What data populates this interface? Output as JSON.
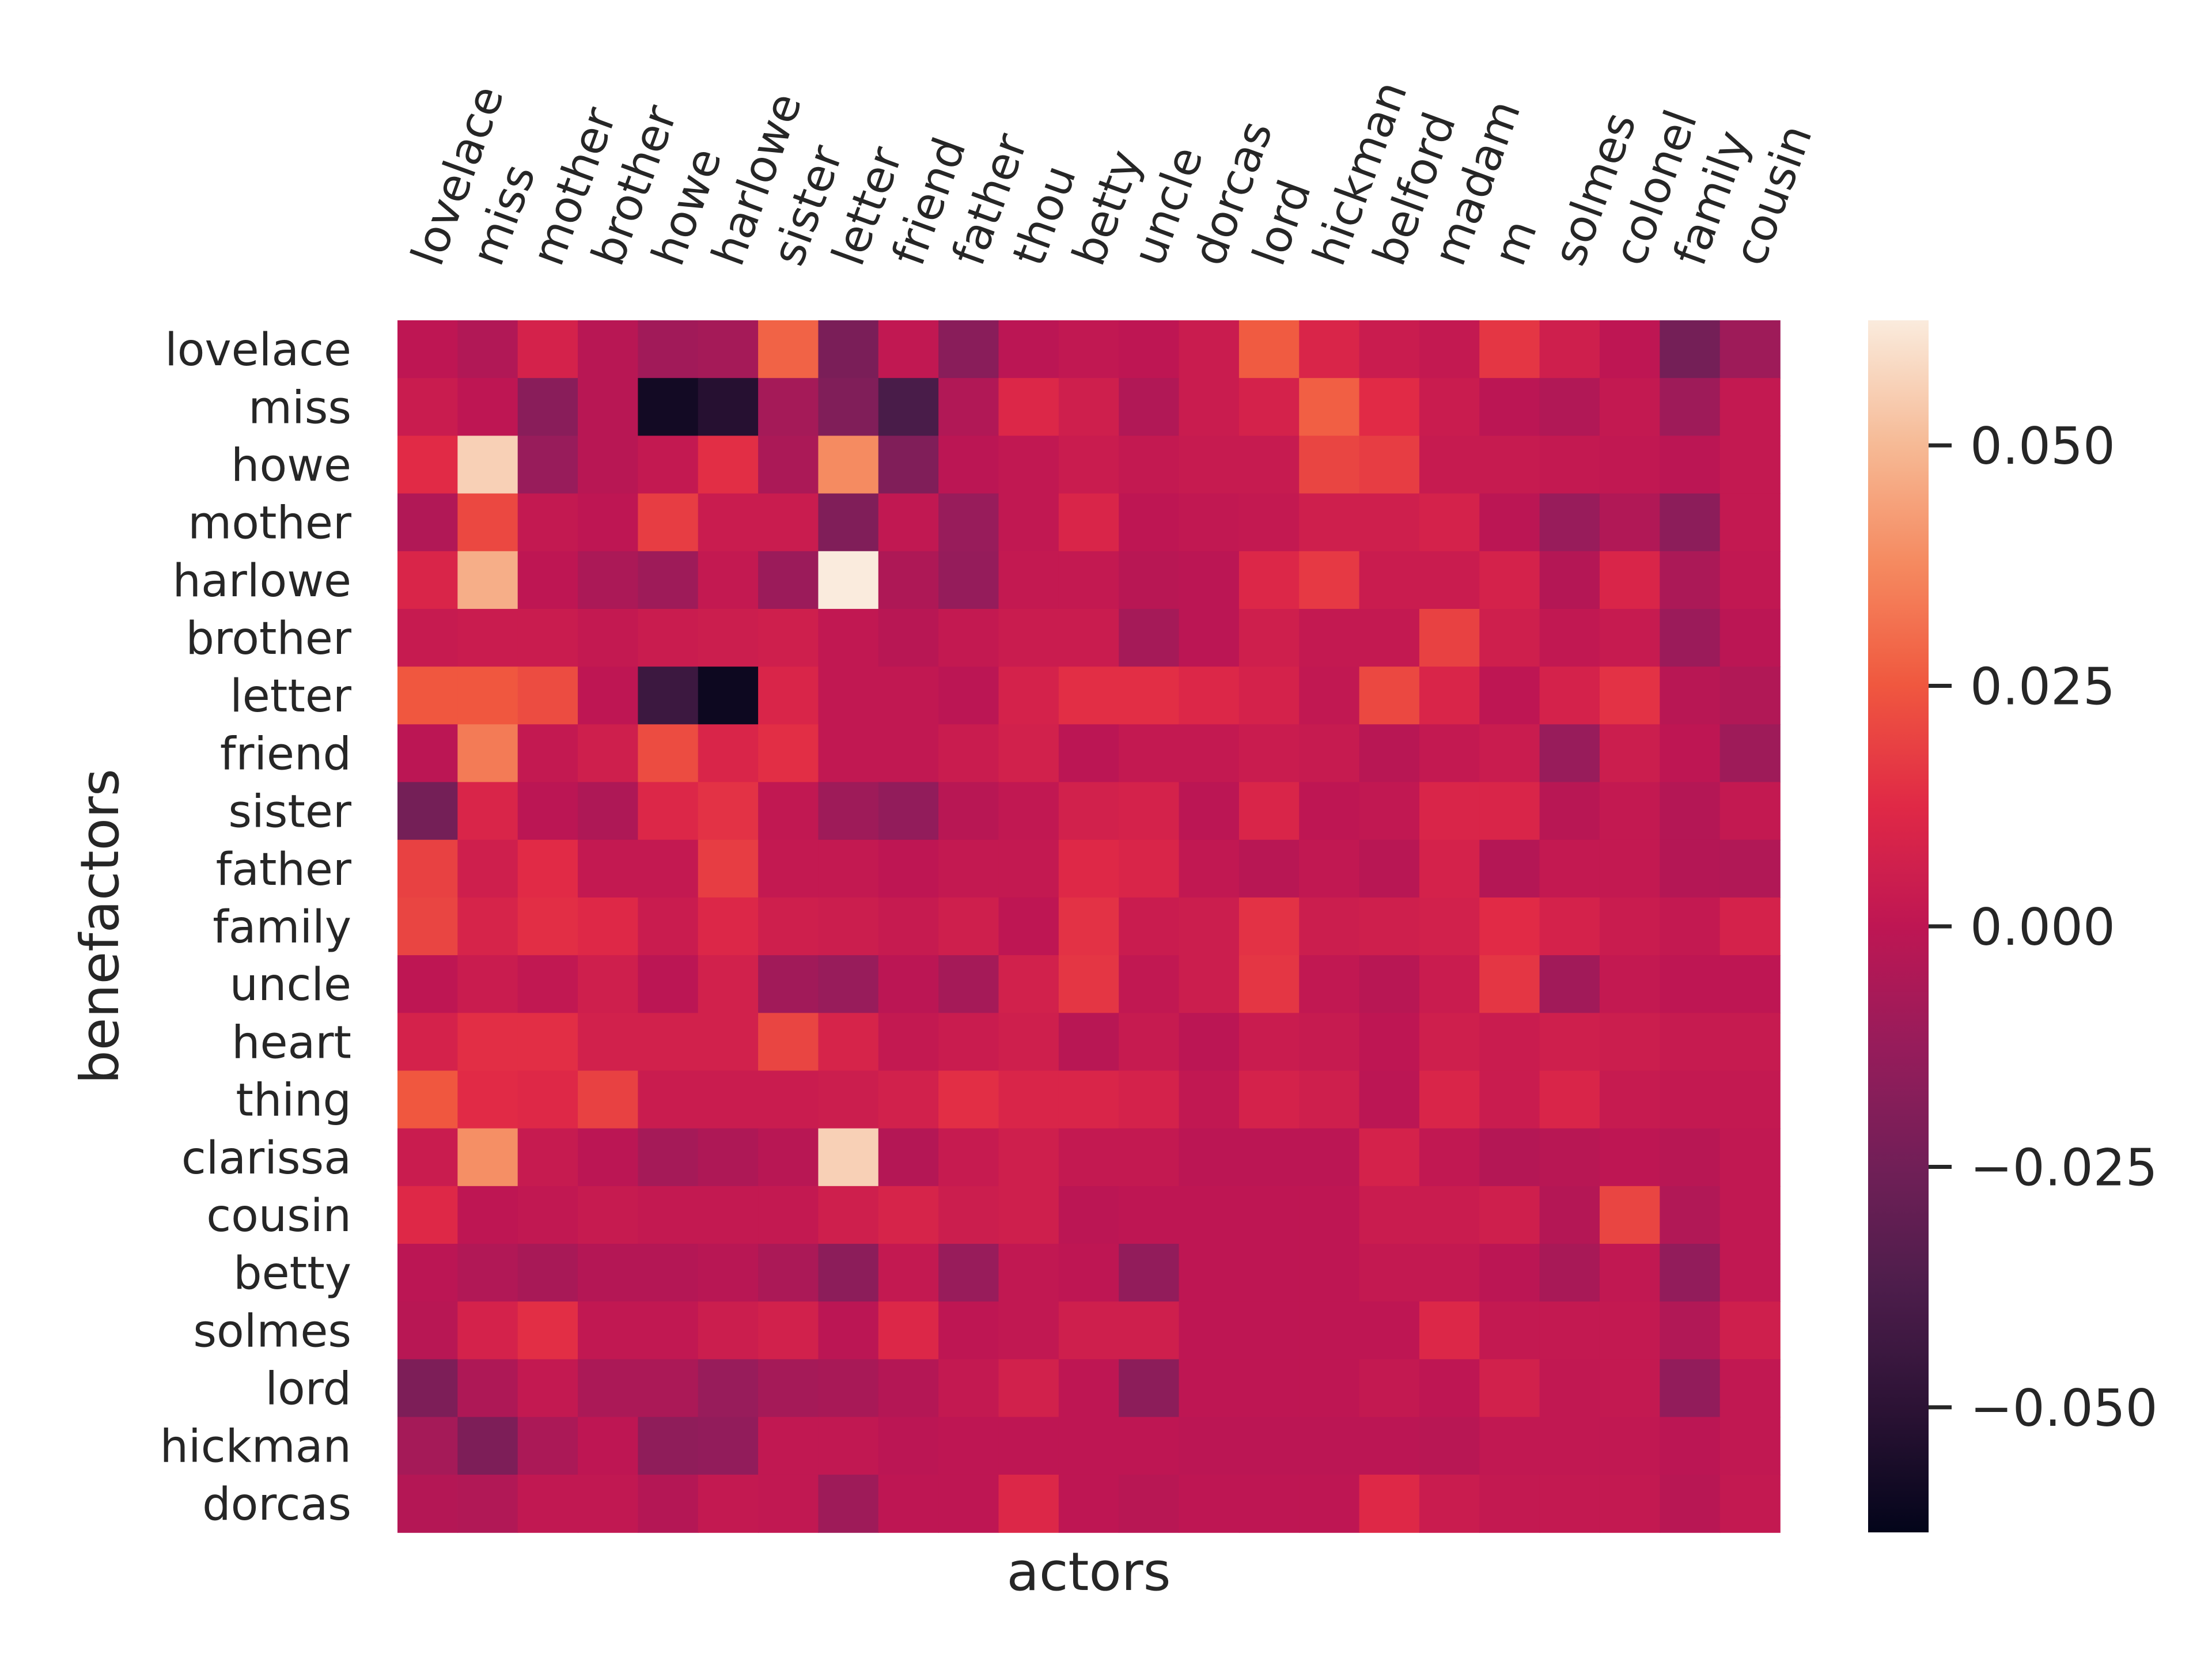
{
  "chart_data": {
    "type": "heatmap",
    "title": "",
    "xlabel": "actors",
    "ylabel": "benefactors",
    "x_categories": [
      "lovelace",
      "miss",
      "mother",
      "brother",
      "howe",
      "harlowe",
      "sister",
      "letter",
      "friend",
      "father",
      "thou",
      "betty",
      "uncle",
      "dorcas",
      "lord",
      "hickman",
      "belford",
      "madam",
      "m",
      "solmes",
      "colonel",
      "family",
      "cousin"
    ],
    "y_categories": [
      "lovelace",
      "miss",
      "howe",
      "mother",
      "harlowe",
      "brother",
      "letter",
      "friend",
      "sister",
      "father",
      "family",
      "uncle",
      "heart",
      "thing",
      "clarissa",
      "cousin",
      "betty",
      "solmes",
      "lord",
      "hickman",
      "dorcas"
    ],
    "values": [
      [
        0.0,
        -0.004,
        0.008,
        -0.002,
        -0.009,
        -0.008,
        0.028,
        -0.022,
        0.001,
        -0.017,
        -0.001,
        0.001,
        0.0,
        0.004,
        0.026,
        0.01,
        0.004,
        0.002,
        0.016,
        0.006,
        0.0,
        -0.024,
        -0.01
      ],
      [
        0.004,
        0.0,
        -0.017,
        -0.002,
        -0.058,
        -0.052,
        -0.008,
        -0.02,
        -0.039,
        -0.004,
        0.011,
        0.006,
        -0.004,
        0.004,
        0.008,
        0.027,
        0.013,
        0.004,
        -0.001,
        -0.004,
        0.002,
        -0.01,
        0.002
      ],
      [
        0.013,
        0.056,
        -0.012,
        -0.002,
        0.002,
        0.014,
        -0.006,
        0.038,
        -0.02,
        -0.001,
        0.001,
        0.004,
        0.002,
        0.003,
        0.003,
        0.02,
        0.018,
        0.003,
        0.003,
        0.002,
        0.001,
        -0.001,
        0.002
      ],
      [
        -0.004,
        0.021,
        0.002,
        0.0,
        0.018,
        0.004,
        0.004,
        -0.02,
        0.001,
        -0.012,
        0.001,
        0.01,
        0.0,
        0.001,
        0.002,
        0.006,
        0.006,
        0.008,
        -0.001,
        -0.012,
        -0.004,
        -0.016,
        0.002
      ],
      [
        0.01,
        0.047,
        0.0,
        -0.006,
        -0.01,
        0.002,
        -0.011,
        0.063,
        -0.005,
        -0.013,
        0.002,
        0.002,
        -0.002,
        -0.001,
        0.011,
        0.017,
        0.004,
        0.004,
        0.008,
        -0.003,
        0.01,
        -0.006,
        0.001
      ],
      [
        0.003,
        0.004,
        0.004,
        0.002,
        0.004,
        0.005,
        0.006,
        0.001,
        -0.002,
        0.002,
        0.004,
        0.004,
        -0.008,
        -0.001,
        0.006,
        0.002,
        0.002,
        0.019,
        0.006,
        0.001,
        0.003,
        -0.011,
        -0.001
      ],
      [
        0.025,
        0.025,
        0.022,
        0.0,
        -0.044,
        -0.06,
        0.01,
        0.001,
        0.001,
        -0.001,
        0.008,
        0.014,
        0.014,
        0.011,
        0.008,
        0.001,
        0.021,
        0.01,
        0.0,
        0.008,
        0.015,
        -0.002,
        -0.004
      ],
      [
        -0.001,
        0.034,
        0.002,
        0.006,
        0.022,
        0.01,
        0.014,
        0.001,
        0.001,
        0.004,
        0.007,
        -0.001,
        0.002,
        0.002,
        0.004,
        0.003,
        -0.002,
        0.002,
        0.004,
        -0.012,
        0.005,
        0.0,
        -0.01
      ],
      [
        -0.024,
        0.01,
        -0.001,
        -0.005,
        0.011,
        0.015,
        0.001,
        -0.01,
        -0.014,
        -0.002,
        0.001,
        0.007,
        0.008,
        -0.001,
        0.01,
        0.0,
        0.001,
        0.01,
        0.01,
        -0.002,
        0.002,
        -0.003,
        0.002
      ],
      [
        0.019,
        0.006,
        0.013,
        0.002,
        0.002,
        0.018,
        0.002,
        0.002,
        0.0,
        0.002,
        0.002,
        0.012,
        0.01,
        0.001,
        -0.002,
        0.001,
        -0.002,
        0.008,
        -0.003,
        0.002,
        0.002,
        -0.003,
        -0.004
      ],
      [
        0.02,
        0.009,
        0.014,
        0.012,
        0.004,
        0.011,
        0.006,
        0.005,
        0.003,
        0.006,
        0.0,
        0.015,
        0.004,
        0.005,
        0.015,
        0.005,
        0.006,
        0.007,
        0.013,
        0.008,
        0.004,
        0.002,
        0.008
      ],
      [
        0.0,
        0.004,
        0.001,
        0.006,
        -0.001,
        0.007,
        -0.009,
        -0.012,
        -0.001,
        -0.008,
        0.007,
        0.016,
        0.001,
        0.005,
        0.016,
        0.001,
        -0.002,
        0.004,
        0.016,
        -0.009,
        0.002,
        0.0,
        0.0
      ],
      [
        0.008,
        0.014,
        0.014,
        0.007,
        0.007,
        0.007,
        0.02,
        0.009,
        0.002,
        0.004,
        0.006,
        -0.002,
        0.003,
        -0.001,
        0.004,
        0.003,
        0.0,
        0.006,
        0.004,
        0.006,
        0.005,
        0.003,
        0.003
      ],
      [
        0.025,
        0.013,
        0.012,
        0.019,
        0.004,
        0.004,
        0.004,
        0.005,
        0.007,
        0.014,
        0.01,
        0.01,
        0.008,
        0.001,
        0.008,
        0.006,
        -0.001,
        0.01,
        0.004,
        0.01,
        0.003,
        0.002,
        0.002
      ],
      [
        0.004,
        0.039,
        0.003,
        -0.001,
        -0.008,
        -0.005,
        -0.002,
        0.056,
        -0.003,
        0.003,
        0.006,
        0.002,
        0.002,
        -0.001,
        -0.001,
        -0.001,
        0.008,
        0.001,
        -0.003,
        -0.002,
        0.0,
        -0.002,
        0.001
      ],
      [
        0.012,
        0.0,
        0.001,
        0.003,
        0.002,
        0.002,
        0.002,
        0.006,
        0.009,
        0.005,
        0.006,
        -0.001,
        0.0,
        0.0,
        0.0,
        0.0,
        0.004,
        0.004,
        0.006,
        -0.003,
        0.02,
        -0.004,
        0.001
      ],
      [
        -0.001,
        -0.004,
        -0.007,
        -0.003,
        -0.003,
        -0.002,
        -0.006,
        -0.016,
        0.002,
        -0.012,
        0.001,
        0.0,
        -0.014,
        0.0,
        0.0,
        0.0,
        0.002,
        0.002,
        -0.001,
        -0.007,
        0.001,
        -0.014,
        0.001
      ],
      [
        -0.002,
        0.008,
        0.014,
        0.001,
        0.001,
        0.005,
        0.007,
        -0.001,
        0.011,
        0.0,
        0.001,
        0.006,
        0.006,
        0.0,
        0.0,
        0.0,
        0.0,
        0.011,
        0.002,
        0.002,
        0.002,
        -0.004,
        0.006
      ],
      [
        -0.021,
        -0.005,
        0.002,
        -0.006,
        -0.006,
        -0.012,
        -0.008,
        -0.007,
        -0.003,
        0.002,
        0.007,
        0.0,
        -0.016,
        0.0,
        0.0,
        0.0,
        0.002,
        0.0,
        0.007,
        0.001,
        0.002,
        -0.014,
        0.001
      ],
      [
        -0.008,
        -0.021,
        -0.006,
        0.0,
        -0.015,
        -0.014,
        0.001,
        0.001,
        -0.001,
        0.0,
        0.0,
        0.0,
        0.0,
        -0.001,
        -0.001,
        -0.001,
        -0.001,
        -0.002,
        0.001,
        0.001,
        0.001,
        -0.001,
        0.001
      ],
      [
        -0.003,
        -0.004,
        0.001,
        0.001,
        -0.003,
        0.002,
        0.001,
        -0.01,
        0.0,
        0.0,
        0.011,
        0.0,
        -0.002,
        0.0,
        0.0,
        0.0,
        0.012,
        0.004,
        0.002,
        0.002,
        0.002,
        -0.002,
        0.002
      ]
    ],
    "vmin": -0.063,
    "vmax": 0.063,
    "colormap": "rocket",
    "colorbar_ticks": [
      0.05,
      0.025,
      0.0,
      -0.025,
      -0.05
    ],
    "colorbar_tick_labels": [
      "0.050",
      "0.025",
      "0.000",
      "−0.025",
      "−0.050"
    ],
    "colorbar_placement": "right",
    "grid": false
  }
}
